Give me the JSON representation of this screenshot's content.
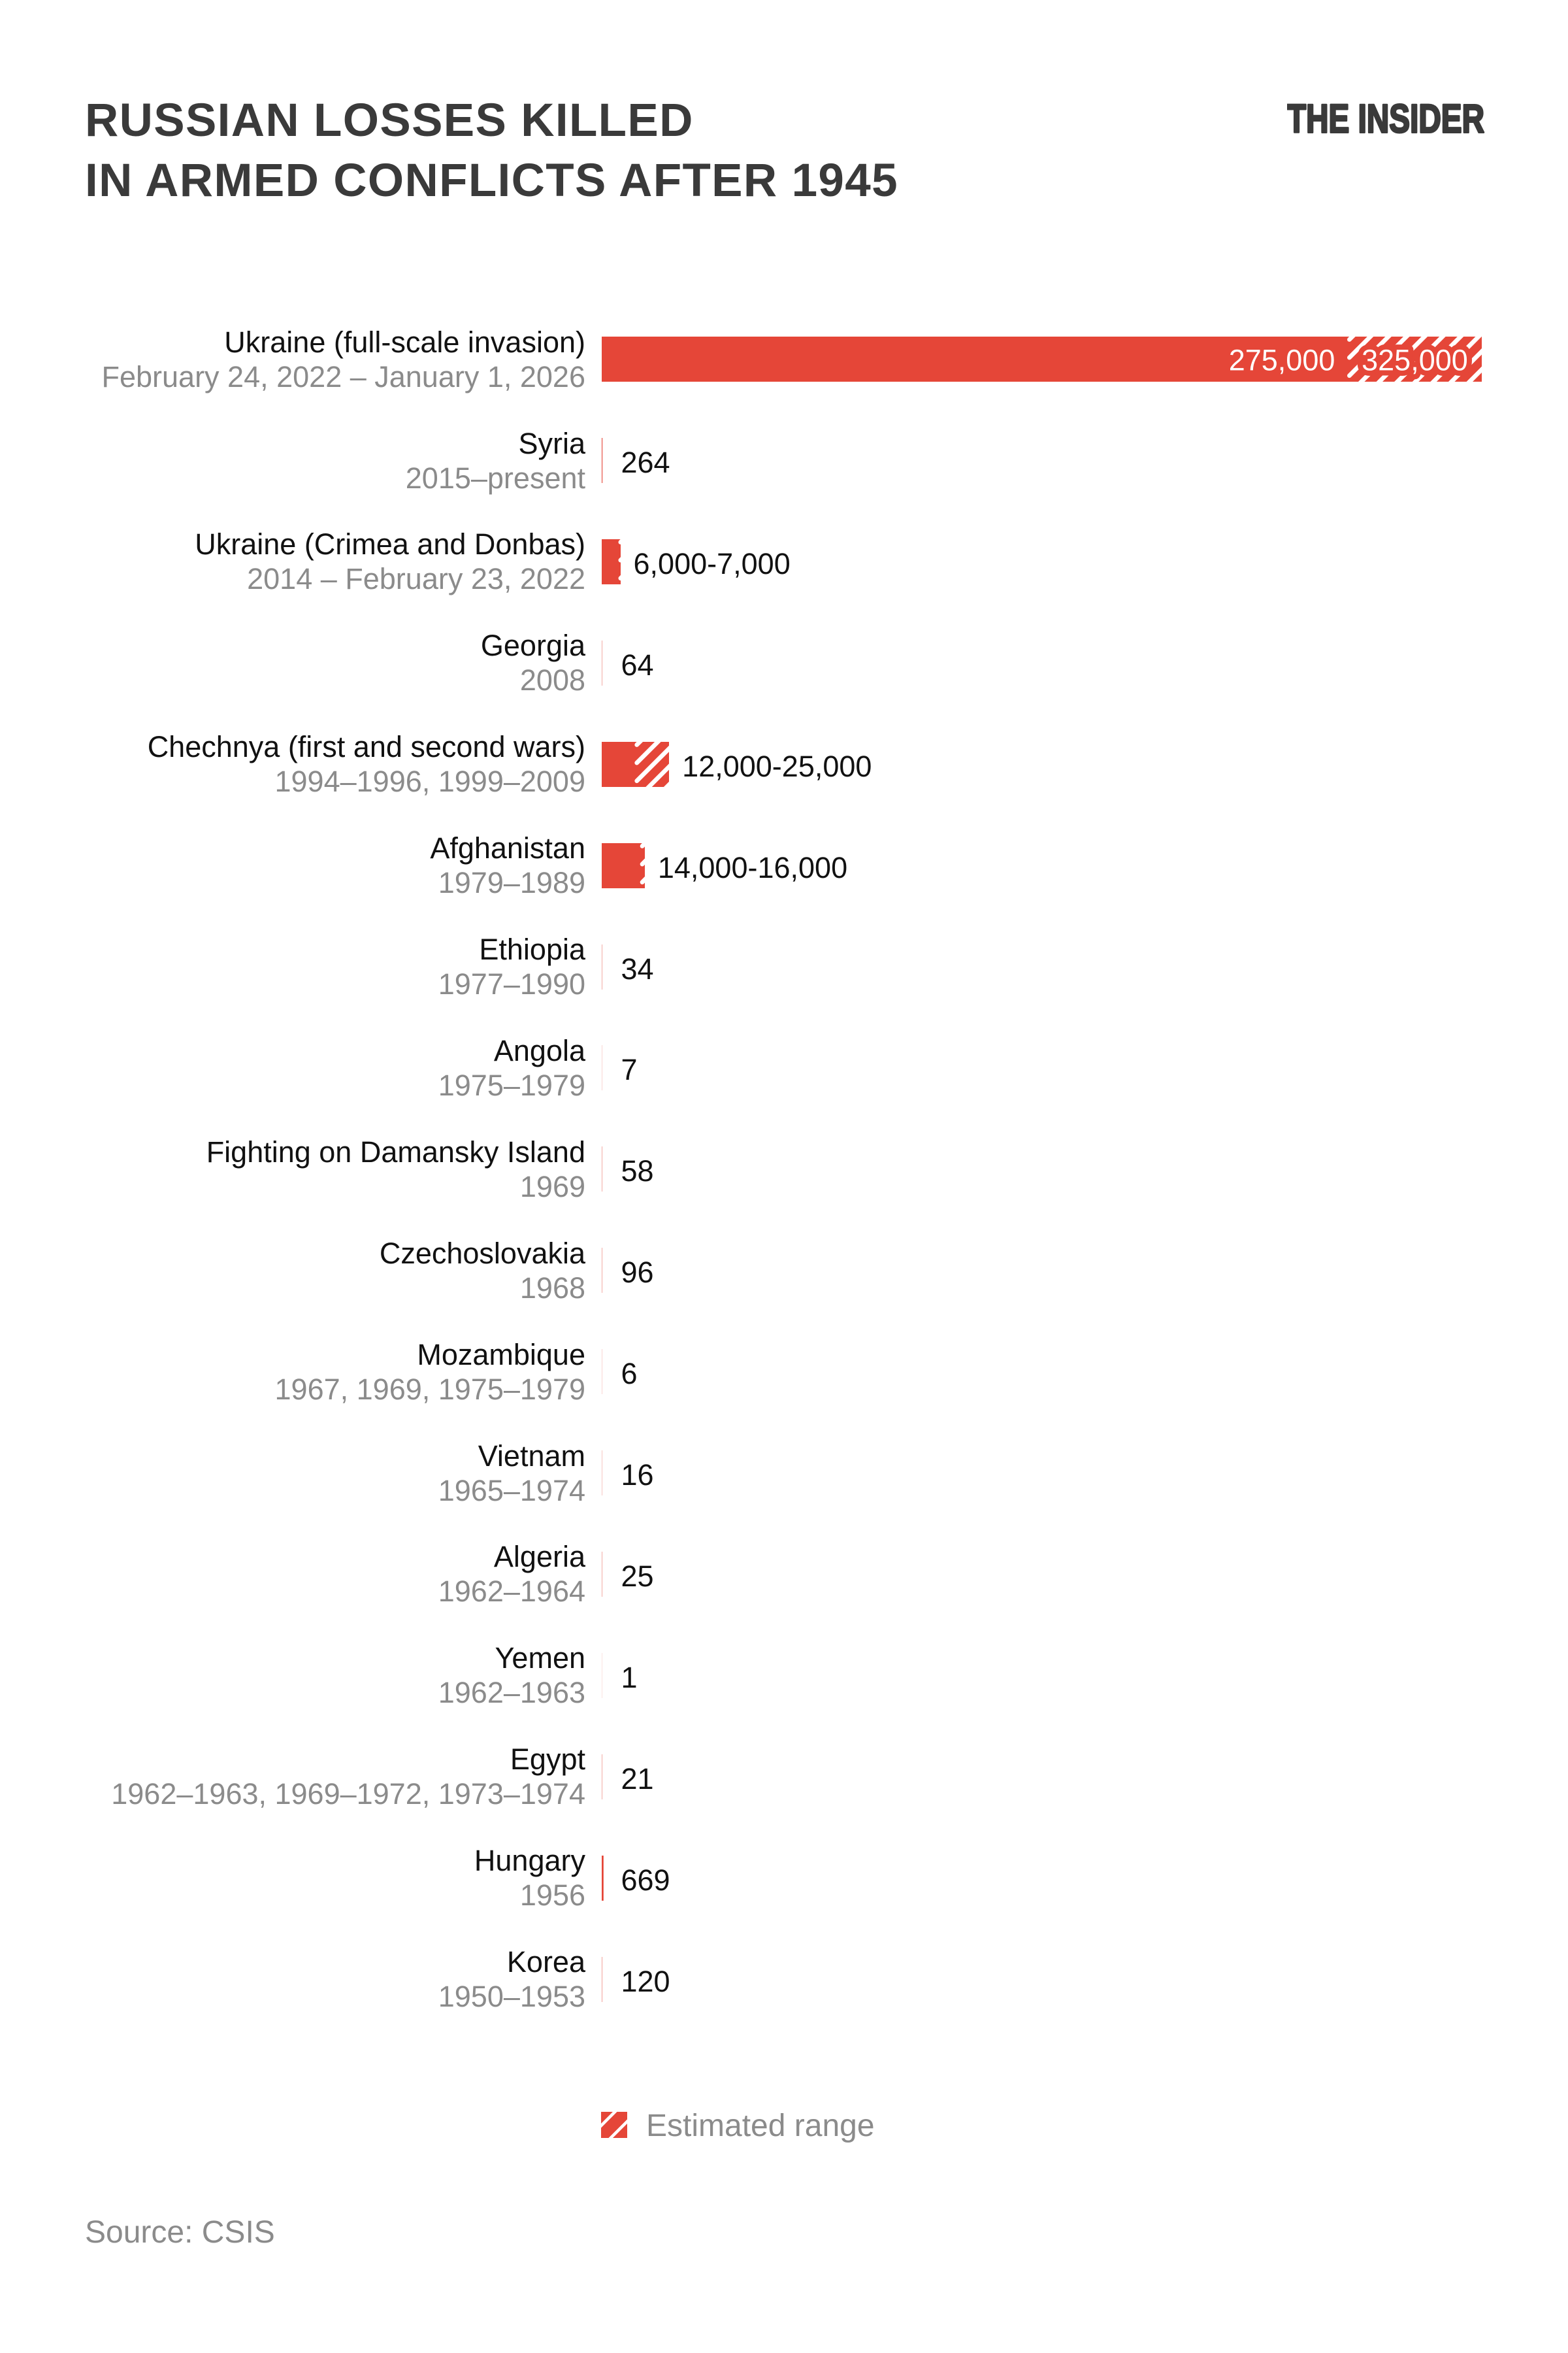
{
  "meta": {
    "title_line1": "RUSSIAN LOSSES KILLED",
    "title_line2": "IN ARMED CONFLICTS AFTER 1945",
    "logo": "THE INSIDER",
    "source": "Source: CSIS"
  },
  "colors": {
    "bar_red": "#E54638",
    "title": "#3A3A3A",
    "label_black": "#111111",
    "date_gray": "#8B8B8B",
    "inbar_text": "#FFFFFF",
    "background": "#FFFFFF"
  },
  "chart_data": {
    "type": "bar",
    "orientation": "horizontal",
    "title": "RUSSIAN LOSSES KILLED IN ARMED CONFLICTS AFTER 1945",
    "x_axis": {
      "min": 0,
      "max": 325000,
      "visible": false,
      "gridlines": false
    },
    "legend": {
      "label": "Estimated range",
      "position": "bottom",
      "swatch": "red-white-diagonal-hatch"
    },
    "hatch_meaning": "estimated range between minimum and maximum value",
    "rows": [
      {
        "name": "Ukraine (full-scale invasion)",
        "dates": "February 24, 2022 – January 1, 2026",
        "value_min": 275000,
        "value_max": 325000,
        "estimated_range": true,
        "label_min": "275,000",
        "label_max": "325,000",
        "labels_inside_bar": true
      },
      {
        "name": "Syria",
        "dates": "2015–present",
        "value": 264,
        "label": "264"
      },
      {
        "name": "Ukraine (Crimea and Donbas)",
        "dates": "2014 – February 23, 2022",
        "value_min": 6000,
        "value_max": 7000,
        "estimated_range": true,
        "label": "6,000-7,000"
      },
      {
        "name": "Georgia",
        "dates": "2008",
        "value": 64,
        "label": "64"
      },
      {
        "name": "Chechnya (first and second wars)",
        "dates": "1994–1996, 1999–2009",
        "value_min": 12000,
        "value_max": 25000,
        "estimated_range": true,
        "label": "12,000-25,000"
      },
      {
        "name": "Afghanistan",
        "dates": "1979–1989",
        "value_min": 14000,
        "value_max": 16000,
        "estimated_range": true,
        "label": "14,000-16,000"
      },
      {
        "name": "Ethiopia",
        "dates": "1977–1990",
        "value": 34,
        "label": "34"
      },
      {
        "name": "Angola",
        "dates": "1975–1979",
        "value": 7,
        "label": "7"
      },
      {
        "name": "Fighting on Damansky Island",
        "dates": "1969",
        "value": 58,
        "label": "58"
      },
      {
        "name": "Czechoslovakia",
        "dates": "1968",
        "value": 96,
        "label": "96"
      },
      {
        "name": "Mozambique",
        "dates": "1967, 1969, 1975–1979",
        "value": 6,
        "label": "6"
      },
      {
        "name": "Vietnam",
        "dates": "1965–1974",
        "value": 16,
        "label": "16"
      },
      {
        "name": "Algeria",
        "dates": "1962–1964",
        "value": 25,
        "label": "25"
      },
      {
        "name": "Yemen",
        "dates": "1962–1963",
        "value": 1,
        "label": "1"
      },
      {
        "name": "Egypt",
        "dates": "1962–1963, 1969–1972, 1973–1974",
        "value": 21,
        "label": "21"
      },
      {
        "name": "Hungary",
        "dates": "1956",
        "value": 669,
        "label": "669"
      },
      {
        "name": "Korea",
        "dates": "1950–1953",
        "value": 120,
        "label": "120"
      }
    ]
  }
}
